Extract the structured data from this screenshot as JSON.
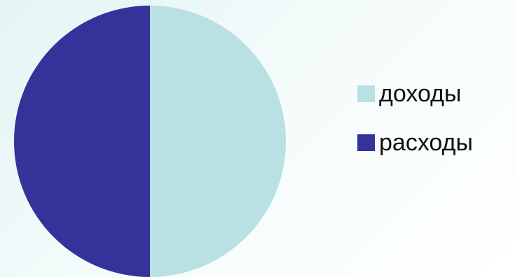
{
  "chart_data": {
    "type": "pie",
    "categories": [
      "доходы",
      "расходы"
    ],
    "values": [
      50,
      50
    ],
    "colors": [
      "#b9e0e3",
      "#333399"
    ],
    "start_angle": 0,
    "direction": "clockwise",
    "legend": "right"
  }
}
